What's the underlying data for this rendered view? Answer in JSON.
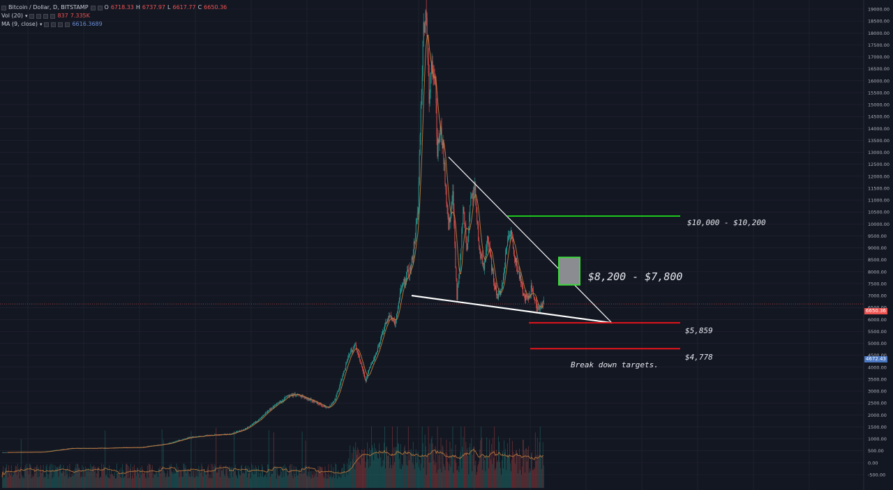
{
  "legend": {
    "symbol": "Bitcoin / Dollar, D, BITSTAMP",
    "open_label": "O",
    "open": "6718.33",
    "high_label": "H",
    "high": "6737.97",
    "low_label": "L",
    "low": "6617.77",
    "close_label": "C",
    "close": "6650.36",
    "vol_name": "Vol (20)",
    "vol_value": "837",
    "vol_ma": "7.335K",
    "ma_name": "MA (9, close)",
    "ma_value": "6616.3689"
  },
  "annotations": {
    "zone_top": "$10,000 - $10,200",
    "zone_box": "$8,200 - $7,800",
    "target1": "$5,859",
    "target2": "$4,778",
    "targets_note": "Break down targets."
  },
  "price_tags": {
    "last": "6650.36",
    "ma": "4672.43"
  },
  "colors": {
    "background": "#131722",
    "grid": "#242733",
    "up": "#26a69a",
    "down": "#ef5350",
    "ma_line": "#c77f3c",
    "green_line": "#1ec81e",
    "red_line": "#e3141b",
    "trend_line": "#ffffff",
    "box_fill": "#8a8c92",
    "box_border": "#3bd83b",
    "last_price_tag": "#ef5350",
    "ma_price_tag": "#4a78c2"
  },
  "chart_data": {
    "type": "candlestick",
    "title": "Bitcoin / Dollar, D, BITSTAMP",
    "ylim": [
      -500,
      19000
    ],
    "yticks": [
      19000,
      18500,
      18000,
      17500,
      17000,
      16500,
      16000,
      15500,
      15000,
      14500,
      14000,
      13500,
      13000,
      12500,
      12000,
      11500,
      11000,
      10500,
      10000,
      9500,
      9000,
      8500,
      8000,
      7500,
      7000,
      6500,
      6000,
      5500,
      5000,
      4500,
      4000,
      3500,
      3000,
      2500,
      2000,
      1500,
      1000,
      500,
      0,
      -500
    ],
    "price_path_index": [
      0,
      60,
      100,
      150,
      200,
      240,
      270,
      300,
      330,
      350,
      370,
      385,
      400,
      405,
      410,
      425,
      440,
      455,
      470,
      480,
      490,
      500,
      510,
      515,
      520,
      525,
      530,
      540,
      550,
      560,
      567,
      575,
      580,
      590,
      600,
      603,
      606,
      608,
      612,
      616,
      620,
      625,
      628,
      632,
      636,
      640,
      644,
      650,
      656,
      660,
      665,
      670,
      676,
      682,
      688,
      695,
      700,
      708,
      715,
      722,
      728,
      734,
      740,
      746,
      752,
      758,
      764,
      770,
      776,
      781
    ],
    "price_path_close": [
      430,
      450,
      600,
      610,
      640,
      800,
      1050,
      1150,
      1200,
      1400,
      1800,
      2200,
      2550,
      2600,
      2800,
      2850,
      2700,
      2500,
      2300,
      2600,
      3500,
      4500,
      4900,
      4400,
      3900,
      3400,
      4000,
      4600,
      5600,
      6200,
      5800,
      7200,
      7600,
      8200,
      10500,
      14000,
      16500,
      18300,
      19000,
      15000,
      17000,
      16000,
      13000,
      14000,
      13200,
      11500,
      9800,
      11200,
      6900,
      8000,
      10800,
      9000,
      11000,
      11500,
      9000,
      8100,
      9500,
      7800,
      6950,
      7500,
      9200,
      9800,
      8500,
      7800,
      7000,
      6800,
      7400,
      6500,
      6550,
      6650
    ],
    "volume_note": "histogram at bottom with orange volume MA line"
  }
}
